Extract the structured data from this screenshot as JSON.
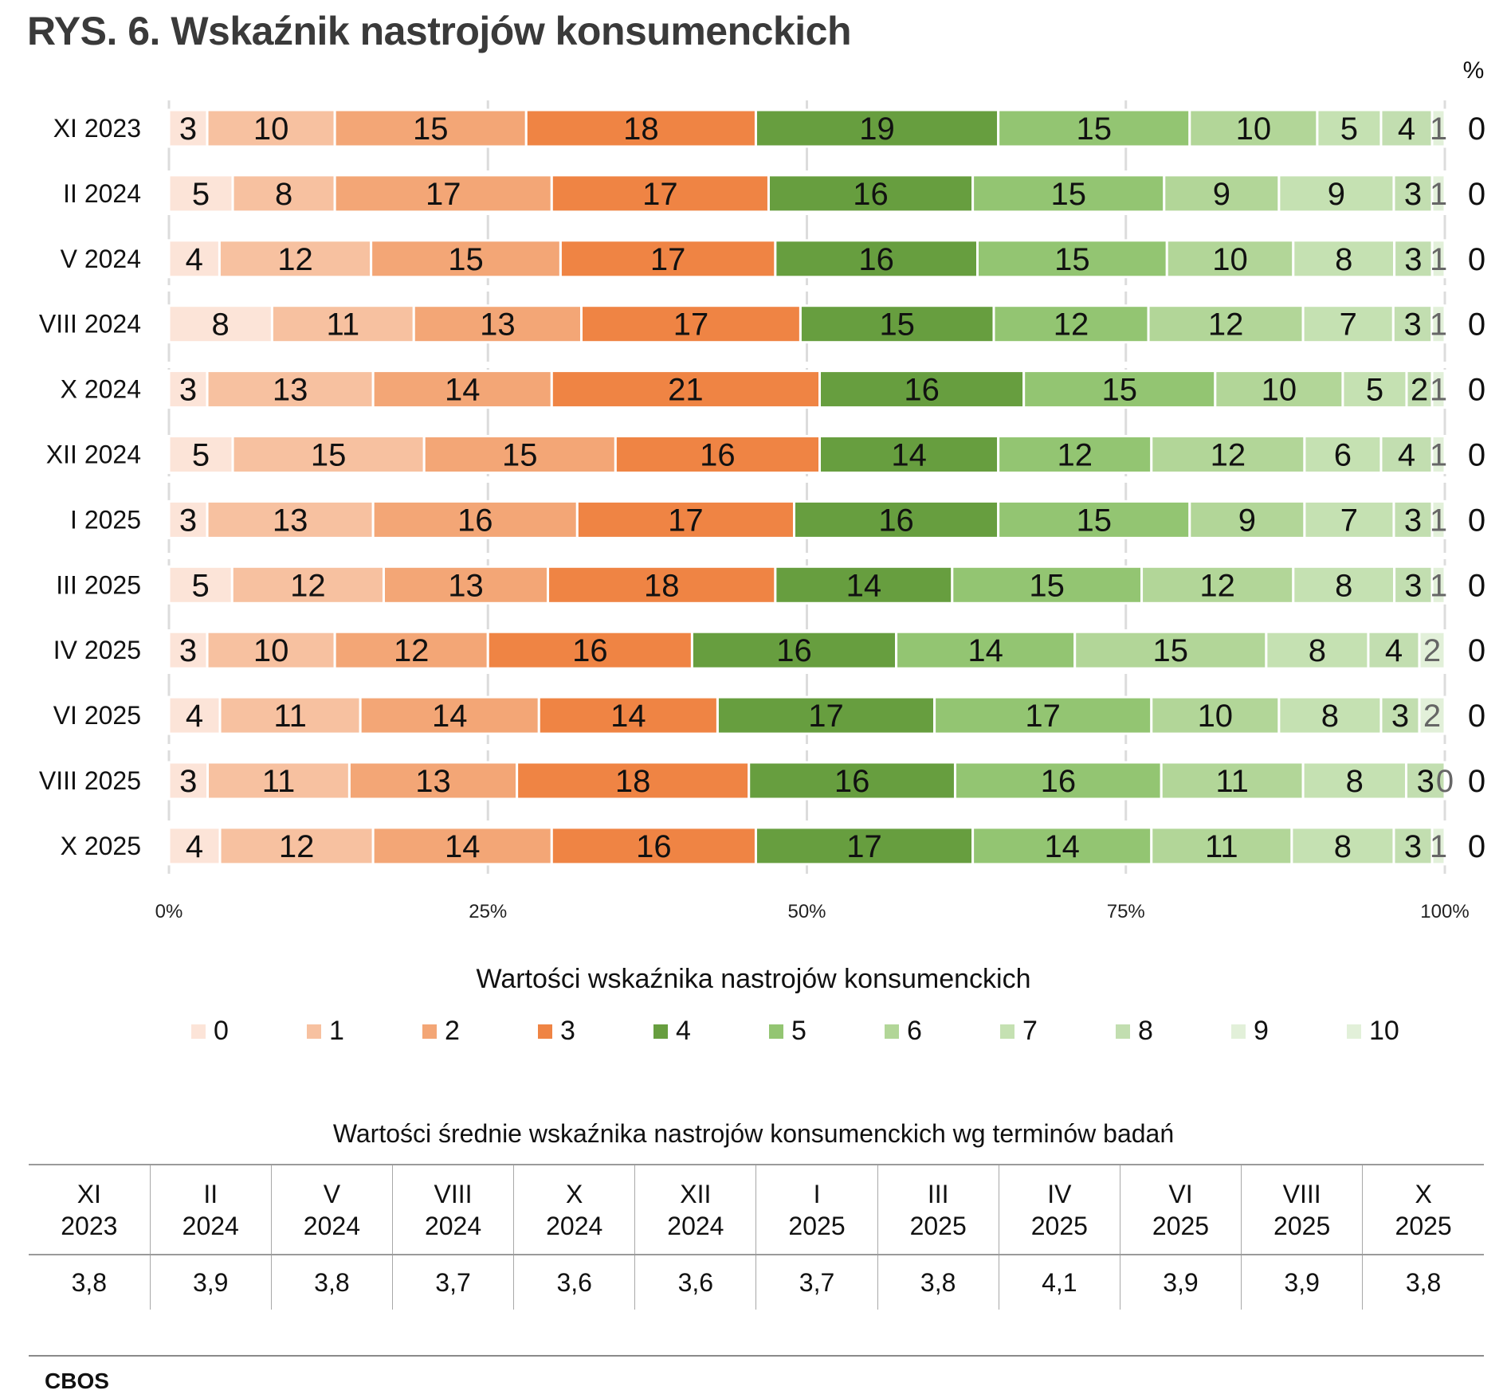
{
  "title": "RYS. 6. Wskaźnik nastrojów konsumenckich",
  "chart_data": {
    "type": "bar",
    "orientation": "horizontal",
    "stacked": "percent",
    "title": "RYS. 6. Wskaźnik nastrojów konsumenckich",
    "unit_label": "%",
    "categories": [
      "XI 2023",
      "II 2024",
      "V 2024",
      "VIII 2024",
      "X 2024",
      "XII 2024",
      "I 2025",
      "III 2025",
      "IV 2025",
      "VI 2025",
      "VIII 2025",
      "X 2025"
    ],
    "series": [
      {
        "name": "0",
        "color": "#fce4d8",
        "values": [
          3,
          5,
          4,
          8,
          3,
          5,
          3,
          5,
          3,
          4,
          3,
          4
        ]
      },
      {
        "name": "1",
        "color": "#f7c1a0",
        "values": [
          10,
          8,
          12,
          11,
          13,
          15,
          13,
          12,
          10,
          11,
          11,
          12
        ]
      },
      {
        "name": "2",
        "color": "#f3a676",
        "values": [
          15,
          17,
          15,
          13,
          14,
          15,
          16,
          13,
          12,
          14,
          13,
          14
        ]
      },
      {
        "name": "3",
        "color": "#ef8444",
        "values": [
          18,
          17,
          17,
          17,
          21,
          16,
          17,
          18,
          16,
          14,
          18,
          16
        ]
      },
      {
        "name": "4",
        "color": "#679e3f",
        "values": [
          19,
          16,
          16,
          15,
          16,
          14,
          16,
          14,
          16,
          17,
          16,
          17
        ]
      },
      {
        "name": "5",
        "color": "#93c572",
        "values": [
          15,
          15,
          15,
          12,
          15,
          12,
          15,
          15,
          14,
          17,
          16,
          14
        ]
      },
      {
        "name": "6",
        "color": "#b2d698",
        "values": [
          10,
          9,
          10,
          12,
          10,
          12,
          9,
          12,
          15,
          10,
          11,
          11
        ]
      },
      {
        "name": "7",
        "color": "#c5e1b2",
        "values": [
          5,
          9,
          8,
          7,
          5,
          6,
          7,
          8,
          8,
          8,
          8,
          8
        ]
      },
      {
        "name": "8",
        "color": "#c2deb0",
        "values": [
          4,
          3,
          3,
          3,
          2,
          4,
          3,
          3,
          4,
          3,
          3,
          3
        ]
      },
      {
        "name": "9",
        "color": "#e2f0d9",
        "values": [
          1,
          1,
          1,
          1,
          1,
          1,
          1,
          1,
          2,
          2,
          0,
          1
        ]
      },
      {
        "name": "10",
        "color": "#e2f0d9",
        "values": [
          0,
          0,
          0,
          0,
          0,
          0,
          0,
          0,
          0,
          0,
          0,
          0
        ]
      }
    ],
    "xlabel": "",
    "ylabel": "",
    "x_ticks": [
      "0%",
      "25%",
      "50%",
      "75%",
      "100%"
    ],
    "xlim": [
      0,
      100
    ],
    "grid": true,
    "legend_title": "Wartości wskaźnika nastrojów konsumenckich",
    "legend_position": "bottom"
  },
  "mean_table": {
    "title": "Wartości średnie wskaźnika nastrojów konsumenckich wg terminów badań",
    "headers": [
      [
        "XI",
        "2023"
      ],
      [
        "II",
        "2024"
      ],
      [
        "V",
        "2024"
      ],
      [
        "VIII",
        "2024"
      ],
      [
        "X",
        "2024"
      ],
      [
        "XII",
        "2024"
      ],
      [
        "I",
        "2025"
      ],
      [
        "III",
        "2025"
      ],
      [
        "IV",
        "2025"
      ],
      [
        "VI",
        "2025"
      ],
      [
        "VIII",
        "2025"
      ],
      [
        "X",
        "2025"
      ]
    ],
    "values": [
      "3,8",
      "3,9",
      "3,8",
      "3,7",
      "3,6",
      "3,6",
      "3,7",
      "3,8",
      "4,1",
      "3,9",
      "3,9",
      "3,8"
    ]
  },
  "source": "CBOS"
}
